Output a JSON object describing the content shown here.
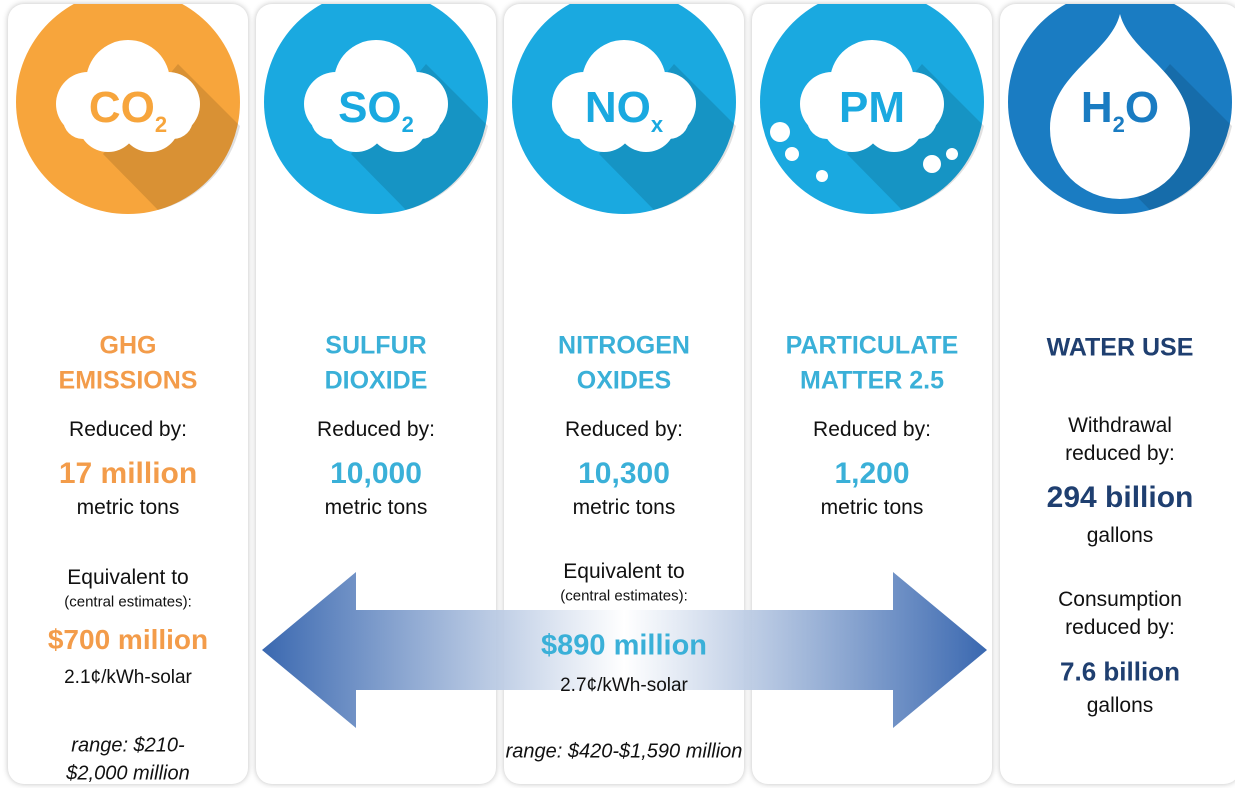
{
  "columns": [
    {
      "icon": [
        "CO",
        "2"
      ],
      "color": "#f39c4a",
      "circle": "#f7a53c",
      "title": [
        "GHG",
        "EMISSIONS"
      ],
      "reduced": [
        "Reduced by:"
      ],
      "amount": "17 million",
      "unit": "metric tons",
      "equivalent": "Equivalent to",
      "note": "(central estimates):",
      "value": "$700 million",
      "per_kwh": "2.1¢/kWh-solar",
      "range": [
        "range: $210-",
        "$2,000 million"
      ]
    },
    {
      "icon": [
        "SO",
        "2"
      ],
      "color": "#3ab0d8",
      "circle": "#1aa9e0",
      "title": [
        "SULFUR",
        "DIOXIDE"
      ],
      "reduced": [
        "Reduced by:"
      ],
      "amount": "10,000",
      "unit": "metric tons"
    },
    {
      "icon": [
        "NO",
        "x"
      ],
      "color": "#3ab0d8",
      "circle": "#1aa9e0",
      "title": [
        "NITROGEN",
        "OXIDES"
      ],
      "reduced": [
        "Reduced by:"
      ],
      "amount": "10,300",
      "unit": "metric tons"
    },
    {
      "icon": [
        "PM"
      ],
      "color": "#3ab0d8",
      "circle": "#1aa9e0",
      "title": [
        "PARTICULATE",
        "MATTER 2.5"
      ],
      "reduced": [
        "Reduced by:"
      ],
      "amount": "1,200",
      "unit": "metric tons"
    },
    {
      "icon": [
        "H",
        "2",
        "O"
      ],
      "color": "#1f3f70",
      "circle": "#1a7cc2",
      "title": [
        "WATER USE"
      ],
      "reduced": [
        "Withdrawal",
        "reduced by:"
      ],
      "amount": "294 billion",
      "unit": "gallons",
      "second_reduced": [
        "Consumption",
        "reduced by:"
      ],
      "second_amount": "7.6 billion",
      "second_unit": "gallons"
    }
  ],
  "shared": {
    "equivalent": "Equivalent to",
    "note": "(central estimates):",
    "value": "$890 million",
    "per_kwh": "2.7¢/kWh-solar",
    "range": "range: $420-$1,590 million"
  }
}
